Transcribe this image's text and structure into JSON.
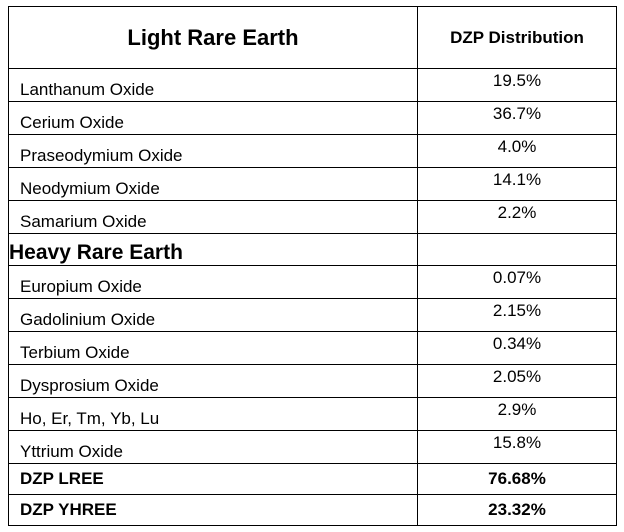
{
  "table": {
    "header": {
      "category": "Light Rare Earth",
      "value_column": "DZP Distribution"
    },
    "light_rare_earth": [
      {
        "name": "Lanthanum Oxide",
        "value": "19.5%"
      },
      {
        "name": "Cerium Oxide",
        "value": "36.7%"
      },
      {
        "name": "Praseodymium Oxide",
        "value": "4.0%"
      },
      {
        "name": "Neodymium Oxide",
        "value": "14.1%"
      },
      {
        "name": "Samarium Oxide",
        "value": "2.2%"
      }
    ],
    "heavy_header": "Heavy Rare Earth",
    "heavy_rare_earth": [
      {
        "name": "Europium Oxide",
        "value": "0.07%"
      },
      {
        "name": "Gadolinium Oxide",
        "value": "2.15%"
      },
      {
        "name": "Terbium Oxide",
        "value": "0.34%"
      },
      {
        "name": "Dysprosium Oxide",
        "value": "2.05%"
      },
      {
        "name": "Ho, Er, Tm, Yb, Lu",
        "value": "2.9%"
      },
      {
        "name": "Yttrium Oxide",
        "value": "15.8%"
      }
    ],
    "totals": [
      {
        "name": "DZP LREE",
        "value": "76.68%"
      },
      {
        "name": "DZP YHREE",
        "value": "23.32%"
      }
    ]
  }
}
